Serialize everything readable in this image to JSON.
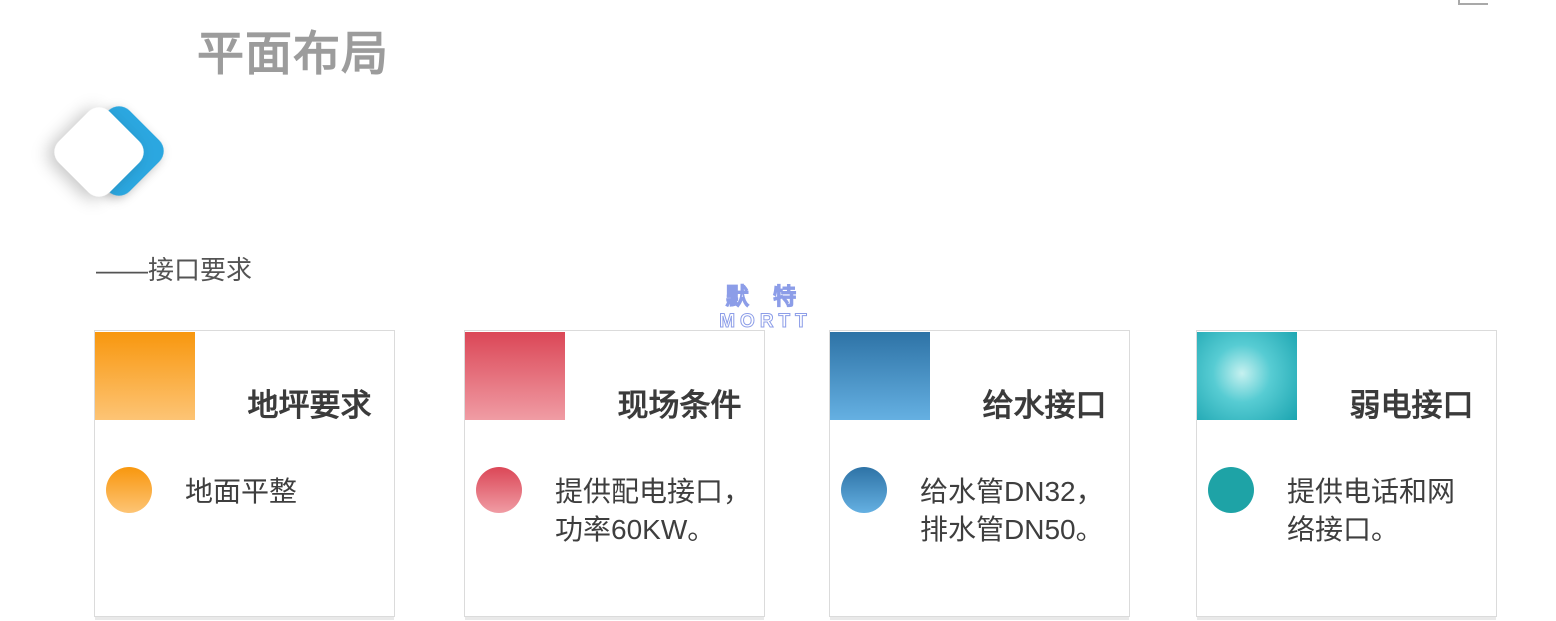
{
  "page": {
    "title": "平面布局",
    "subtitle": "——接口要求",
    "title_color": "#9C9C9C"
  },
  "decor": {
    "diamond_color": "#2BA7E0",
    "frame_corner_color": "#A9A9A9"
  },
  "watermark": {
    "cn": "默 特",
    "en": "MORTT",
    "stroke_color": "#8C9DE8"
  },
  "cards": [
    {
      "title": "地坪要求",
      "desc": "地面平整",
      "accent_from": "#F8970E",
      "accent_to": "#FDC475"
    },
    {
      "title": "现场条件",
      "desc": "提供配电接口，\n功率60KW。",
      "accent_from": "#DB4757",
      "accent_to": "#F09CA4"
    },
    {
      "title": "给水接口",
      "desc": "给水管DN32，\n排水管DN50。",
      "accent_from": "#2E73A6",
      "accent_to": "#65B0E2"
    },
    {
      "title": "弱电接口",
      "desc": "提供电话和网\n络接口。",
      "accent_center": "#C6F1F0",
      "accent_mid": "#57CCD3",
      "accent_edge": "#1BA4B0",
      "dot_color": "#1EA3A6"
    }
  ]
}
